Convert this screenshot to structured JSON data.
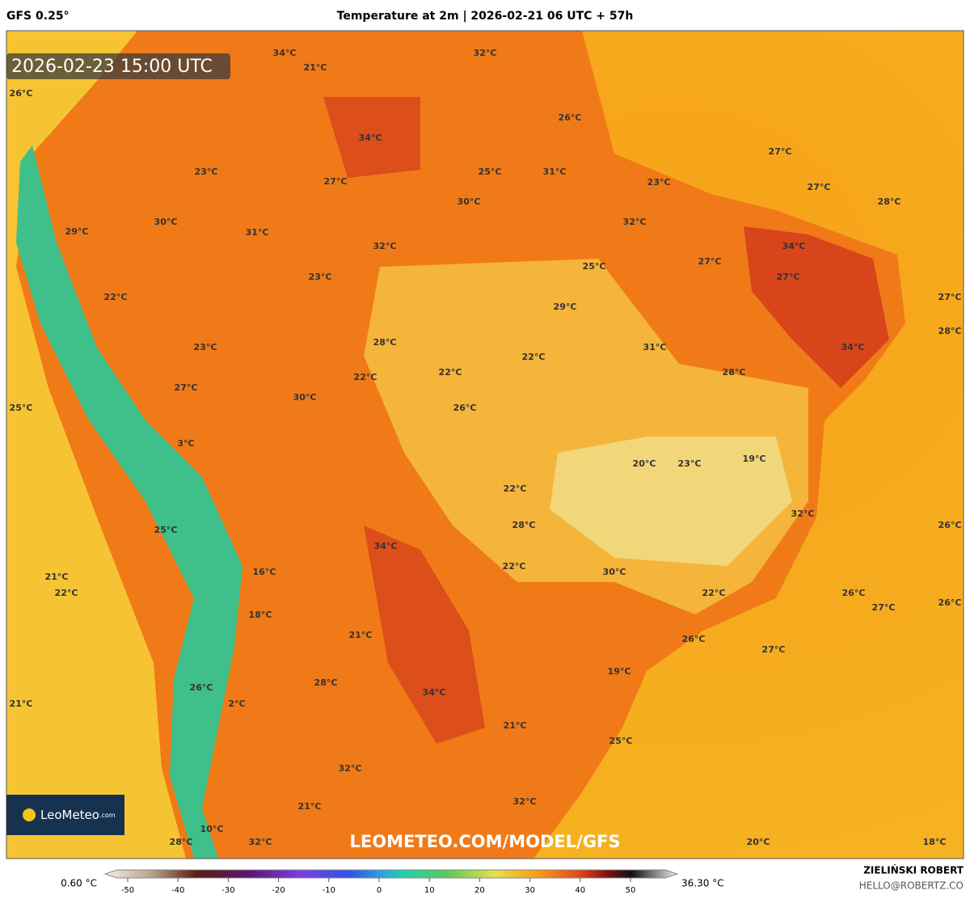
{
  "header": {
    "model": "GFS 0.25°",
    "title": "Temperature at 2m | 2026-02-21 06 UTC + 57h"
  },
  "map": {
    "timestamp": "2026-02-23 15:00 UTC",
    "watermark": "LEOMETEO.COM/MODEL/GFS",
    "logo": "LeoMeteo",
    "logo_suffix": ".com",
    "labels": [
      "34°C",
      "32°C",
      "21°C",
      "26°C",
      "26°C",
      "34°C",
      "27°C",
      "23°C",
      "27°C",
      "25°C",
      "31°C",
      "23°C",
      "27°C",
      "28°C",
      "30°C",
      "30°C",
      "29°C",
      "31°C",
      "32°C",
      "32°C",
      "34°C",
      "27°C",
      "25°C",
      "27°C",
      "23°C",
      "22°C",
      "29°C",
      "27°C",
      "28°C",
      "28°C",
      "31°C",
      "34°C",
      "23°C",
      "22°C",
      "22°C",
      "22°C",
      "28°C",
      "27°C",
      "30°C",
      "25°C",
      "26°C",
      "3°C",
      "20°C",
      "23°C",
      "19°C",
      "22°C",
      "32°C",
      "26°C",
      "28°C",
      "25°C",
      "34°C",
      "22°C",
      "16°C",
      "30°C",
      "21°C",
      "22°C",
      "22°C",
      "26°C",
      "27°C",
      "26°C",
      "18°C",
      "21°C",
      "26°C",
      "27°C",
      "19°C",
      "28°C",
      "26°C",
      "34°C",
      "21°C",
      "2°C",
      "21°C",
      "25°C",
      "32°C",
      "32°C",
      "21°C",
      "10°C",
      "28°C",
      "32°C",
      "20°C",
      "18°C"
    ]
  },
  "legend": {
    "min": "0.60 °C",
    "max": "36.30 °C",
    "ticks": [
      -50,
      -40,
      -30,
      -20,
      -10,
      0,
      10,
      20,
      30,
      40,
      50
    ]
  },
  "footer": {
    "author": "ZIELIŃSKI ROBERT",
    "email": "HELLO@ROBERTZ.CO"
  }
}
